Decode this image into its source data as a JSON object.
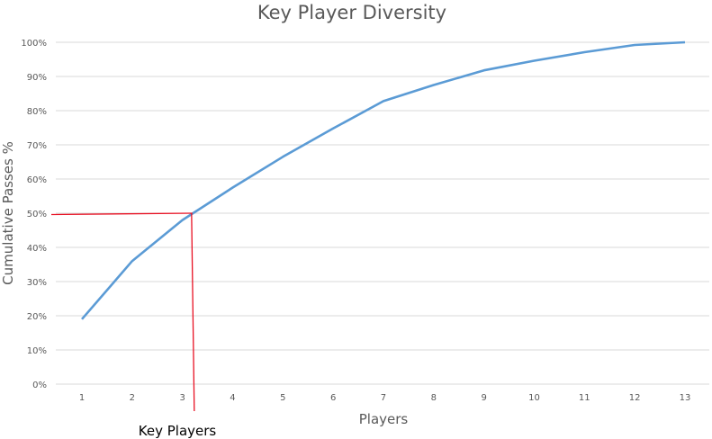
{
  "chart_data": {
    "type": "line",
    "title": "Key Player Diversity",
    "xlabel": "Players",
    "ylabel": "Cumulative Passes  %",
    "x": [
      1,
      2,
      3,
      4,
      5,
      6,
      7,
      8,
      9,
      10,
      11,
      12,
      13
    ],
    "series": [
      {
        "values": [
          19,
          36,
          48,
          57.5,
          66.5,
          74.8,
          82.8,
          87.5,
          91.8,
          94.6,
          97.1,
          99.2,
          100
        ],
        "color": "#5b9bd5"
      }
    ],
    "ylim": [
      0,
      100
    ],
    "yticks": [
      "0%",
      "10%",
      "20%",
      "30%",
      "40%",
      "50%",
      "60%",
      "70%",
      "80%",
      "90%",
      "100%"
    ],
    "xticks": [
      "1",
      "2",
      "3",
      "4",
      "5",
      "6",
      "7",
      "8",
      "9",
      "10",
      "11",
      "12",
      "13"
    ],
    "grid": true,
    "legend": "none",
    "annotations": {
      "label": "Key Players",
      "threshold_y": 50,
      "threshold_x": 3.2,
      "color": "#e81123"
    }
  }
}
